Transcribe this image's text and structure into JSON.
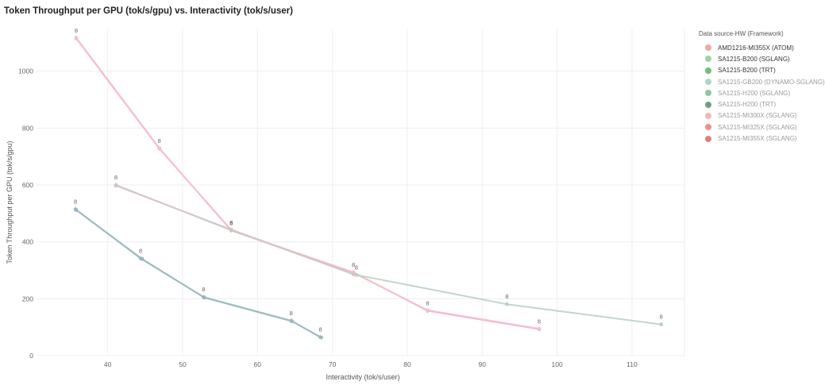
{
  "chart_data": {
    "type": "line",
    "title": "Token Throughput per GPU (tok/s/gpu) vs. Interactivity (tok/s/user)",
    "xlabel": "Interactivity (tok/s/user)",
    "ylabel": "Token Throughput per GPU (tok/s/gpu)",
    "xlim": [
      30.5,
      117
    ],
    "ylim": [
      0,
      1150
    ],
    "x_ticks": [
      40,
      50,
      60,
      70,
      80,
      90,
      100,
      110
    ],
    "y_ticks": [
      0,
      200,
      400,
      600,
      800,
      1000
    ],
    "grid": true,
    "legend_position": "right",
    "point_label": "8",
    "legend": {
      "title": "Data source-HW (Framework)",
      "items": [
        {
          "label": "AMD1216-MI355X (ATOM)",
          "color": "#f4a6a6",
          "dim": false
        },
        {
          "label": "SA1215-B200 (SGLANG)",
          "color": "#9ed3a3",
          "dim": false
        },
        {
          "label": "SA1215-B200 (TRT)",
          "color": "#6fbf78",
          "dim": false
        },
        {
          "label": "SA1215-GB200 (DYNAMO-SGLANG)",
          "color": "#a9d8c7",
          "dim": true
        },
        {
          "label": "SA1215-H200 (SGLANG)",
          "color": "#8fc7a8",
          "dim": true
        },
        {
          "label": "SA1215-H200 (TRT)",
          "color": "#6e9f84",
          "dim": true
        },
        {
          "label": "SA1215-MI300X (SGLANG)",
          "color": "#f2b8b8",
          "dim": true
        },
        {
          "label": "SA1215-MI325X (SGLANG)",
          "color": "#ee9090",
          "dim": true
        },
        {
          "label": "SA1215-MI355X (SGLANG)",
          "color": "#dd8080",
          "dim": true
        }
      ]
    },
    "series": [
      {
        "color": "#f2a3bd",
        "x": [
          35.8,
          46.9,
          56.5,
          72.8,
          82.7,
          97.6
        ],
        "y": [
          1117,
          729,
          440,
          293,
          158,
          93
        ],
        "labeled": [
          true,
          true,
          true,
          true,
          true,
          true
        ]
      },
      {
        "color": "#f5c2cd",
        "x": [
          35.8,
          46.9,
          56.5,
          72.8,
          82.7,
          97.6
        ],
        "y": [
          1115,
          727,
          442,
          291,
          160,
          95
        ],
        "labeled": [
          false,
          false,
          false,
          false,
          false,
          false
        ]
      },
      {
        "color": "#b9cfc1",
        "x": [
          41.1,
          56.5,
          73.2,
          93.3,
          113.9
        ],
        "y": [
          600,
          441,
          284,
          181,
          110
        ],
        "labeled": [
          true,
          true,
          true,
          true,
          true
        ]
      },
      {
        "color": "#d8c2c6",
        "x": [
          41.1,
          56.5,
          72.8
        ],
        "y": [
          598,
          443,
          286
        ],
        "labeled": [
          false,
          false,
          false
        ]
      },
      {
        "color": "#8fc4ae",
        "x": [
          35.7,
          44.4,
          52.8,
          64.5,
          68.4
        ],
        "y": [
          515,
          342,
          206,
          123,
          65
        ],
        "labeled": [
          true,
          true,
          true,
          true,
          true
        ]
      },
      {
        "color": "#9cb6c0",
        "x": [
          35.8,
          44.6,
          52.9,
          64.6,
          68.5
        ],
        "y": [
          512,
          340,
          204,
          121,
          64
        ],
        "labeled": [
          false,
          false,
          false,
          false,
          false
        ]
      }
    ]
  }
}
